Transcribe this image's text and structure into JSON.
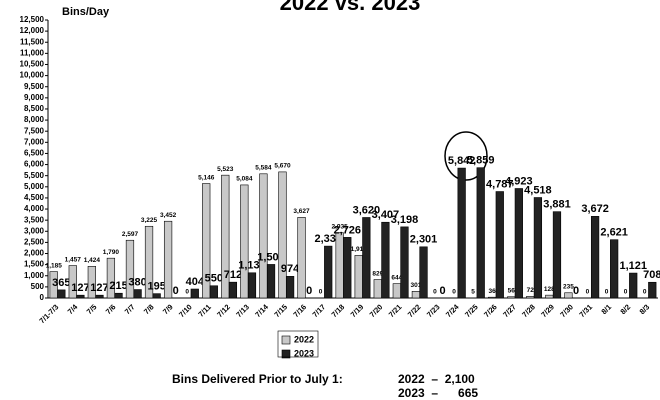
{
  "chart_data": {
    "type": "bar",
    "title": "2022 vs. 2023",
    "y_label": "Bins/Day",
    "categories": [
      "7/1-7/3",
      "7/4",
      "7/5",
      "7/6",
      "7/7",
      "7/8",
      "7/9",
      "7/10",
      "7/11",
      "7/12",
      "7/13",
      "7/14",
      "7/15",
      "7/16",
      "7/17",
      "7/18",
      "7/19",
      "7/20",
      "7/21",
      "7/22",
      "7/23",
      "7/24",
      "7/25",
      "7/26",
      "7/27",
      "7/28",
      "7/29",
      "7/30",
      "7/31",
      "8/1",
      "8/2",
      "8/3"
    ],
    "series": [
      {
        "name": "2022",
        "color": "#c8c8c8",
        "values": [
          1185,
          1457,
          1424,
          1790,
          2597,
          3225,
          3452,
          0,
          5146,
          5523,
          5084,
          5584,
          5670,
          3627,
          0,
          2935,
          1916,
          829,
          644,
          301,
          0,
          0,
          5,
          36,
          56,
          72,
          128,
          235,
          0,
          0,
          0,
          0
        ],
        "value_labels": [
          "1,185",
          "1,457",
          "1,424",
          "1,790",
          "2,597",
          "3,225",
          "3,452",
          "0",
          "5,146",
          "5,523",
          "5,084",
          "5,584",
          "5,670",
          "3,627",
          "0",
          "2,935",
          "1,916",
          "829",
          "644",
          "301",
          "0",
          "0",
          "5",
          "36",
          "56",
          "72",
          "128",
          "235",
          "0",
          "0",
          "0",
          "0"
        ]
      },
      {
        "name": "2023",
        "color": "#222222",
        "values": [
          365,
          127,
          127,
          215,
          380,
          195,
          0,
          404,
          550,
          712,
          1134,
          1509,
          974,
          0,
          2333,
          2726,
          3620,
          3407,
          3198,
          2301,
          0,
          5842,
          5859,
          4787,
          4923,
          4518,
          3881,
          0,
          3672,
          2621,
          1121,
          708
        ],
        "value_labels": [
          "365",
          "127",
          "127",
          "215",
          "380",
          "195",
          "0",
          "404",
          "550",
          "712",
          "1,134",
          "1,509",
          "974",
          "0",
          "2,333",
          "2,726",
          "3,620",
          "3,407",
          "3,198",
          "2,301",
          "0",
          "5,842",
          "5,859",
          "4,787",
          "4,923",
          "4,518",
          "3,881",
          "0",
          "3,672",
          "2,621",
          "1,121",
          "708"
        ]
      }
    ],
    "ylim": [
      0,
      12500
    ],
    "yticks": [
      0,
      500,
      {
        "value": 1000,
        "label": "1,000"
      },
      {
        "value": 1500,
        "label": "1,500"
      },
      {
        "value": 2000,
        "label": "2,000"
      },
      {
        "value": 2500,
        "label": "2,500"
      },
      {
        "value": 3000,
        "label": "3,000"
      },
      {
        "value": 3500,
        "label": "3,500"
      },
      {
        "value": 4000,
        "label": "4,000"
      },
      {
        "value": 4500,
        "label": "4,500"
      },
      {
        "value": 5000,
        "label": "5,000"
      },
      {
        "value": 5500,
        "label": "5,500"
      },
      {
        "value": 6000,
        "label": "6,000"
      },
      {
        "value": 6500,
        "label": "6,500"
      },
      {
        "value": 7000,
        "label": "7,000"
      },
      {
        "value": 7500,
        "label": "7,500"
      },
      {
        "value": 8000,
        "label": "8,000"
      },
      {
        "value": 8500,
        "label": "8,500"
      },
      {
        "value": 9000,
        "label": "9,000"
      },
      {
        "value": 9500,
        "label": "9,500"
      },
      {
        "value": 10000,
        "label": "10,000"
      },
      {
        "value": 10500,
        "label": "10,500"
      },
      {
        "value": 11000,
        "label": "11,000"
      },
      {
        "value": 11500,
        "label": "11,500"
      },
      {
        "value": 12000,
        "label": "12,000"
      },
      {
        "value": 12500,
        "label": "12,500"
      }
    ],
    "grid": false,
    "legend": "bottom",
    "footnote": {
      "label": "Bins Delivered Prior to July 1:",
      "lines": [
        "2022  –  2,100",
        "2023  –      665"
      ]
    }
  }
}
